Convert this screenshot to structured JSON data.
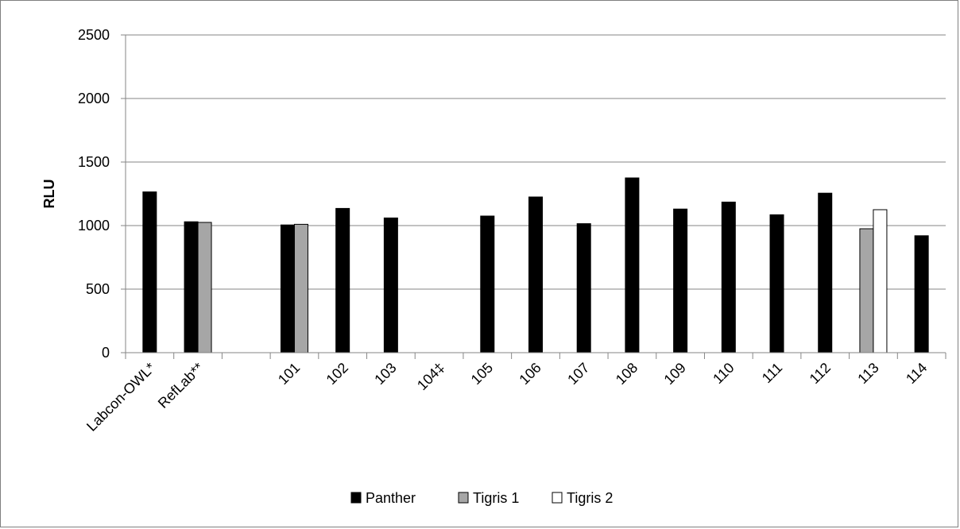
{
  "chart_data": {
    "type": "bar",
    "title": "",
    "xlabel": "",
    "ylabel": "RLU",
    "ylim": [
      0,
      2500
    ],
    "yticks": [
      0,
      500,
      1000,
      1500,
      2000,
      2500
    ],
    "grid": true,
    "legend_position": "bottom",
    "categories": [
      "Labcon-OWL*",
      "RefLab**",
      "",
      "101",
      "102",
      "103",
      "104‡",
      "105",
      "106",
      "107",
      "108",
      "109",
      "110",
      "111",
      "112",
      "113",
      "114"
    ],
    "series": [
      {
        "name": "Panther",
        "color": "#000000",
        "values": [
          1265,
          1030,
          null,
          1005,
          1135,
          1060,
          null,
          1075,
          1225,
          1015,
          1375,
          1130,
          1185,
          1085,
          1255,
          null,
          920
        ]
      },
      {
        "name": "Tigris 1",
        "color": "#a6a6a6",
        "values": [
          null,
          1025,
          null,
          1010,
          null,
          null,
          null,
          null,
          null,
          null,
          null,
          null,
          null,
          null,
          null,
          975,
          null
        ]
      },
      {
        "name": "Tigris 2",
        "color": "#ffffff",
        "values": [
          null,
          null,
          null,
          null,
          null,
          null,
          null,
          null,
          null,
          null,
          null,
          null,
          null,
          null,
          null,
          1125,
          null
        ]
      }
    ]
  }
}
